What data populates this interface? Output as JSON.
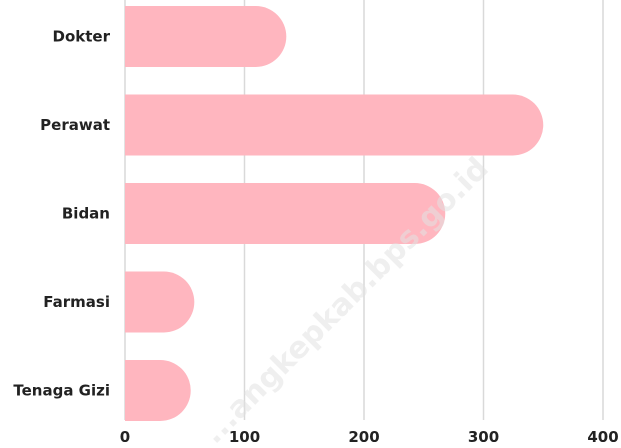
{
  "chart_data": {
    "type": "bar",
    "orientation": "horizontal",
    "categories": [
      "Dokter",
      "Perawat",
      "Bidan",
      "Farmasi",
      "Tenaga Gizi"
    ],
    "values": [
      135,
      350,
      268,
      58,
      55
    ],
    "xlim": [
      0,
      400
    ],
    "xticks": [
      "0",
      "100",
      "200",
      "300",
      "400"
    ],
    "grid": "vertical",
    "bar_color": "#ffb6bf",
    "title": "",
    "xlabel": "",
    "ylabel": ""
  },
  "watermark": "...angkepkab.bps.go.id"
}
